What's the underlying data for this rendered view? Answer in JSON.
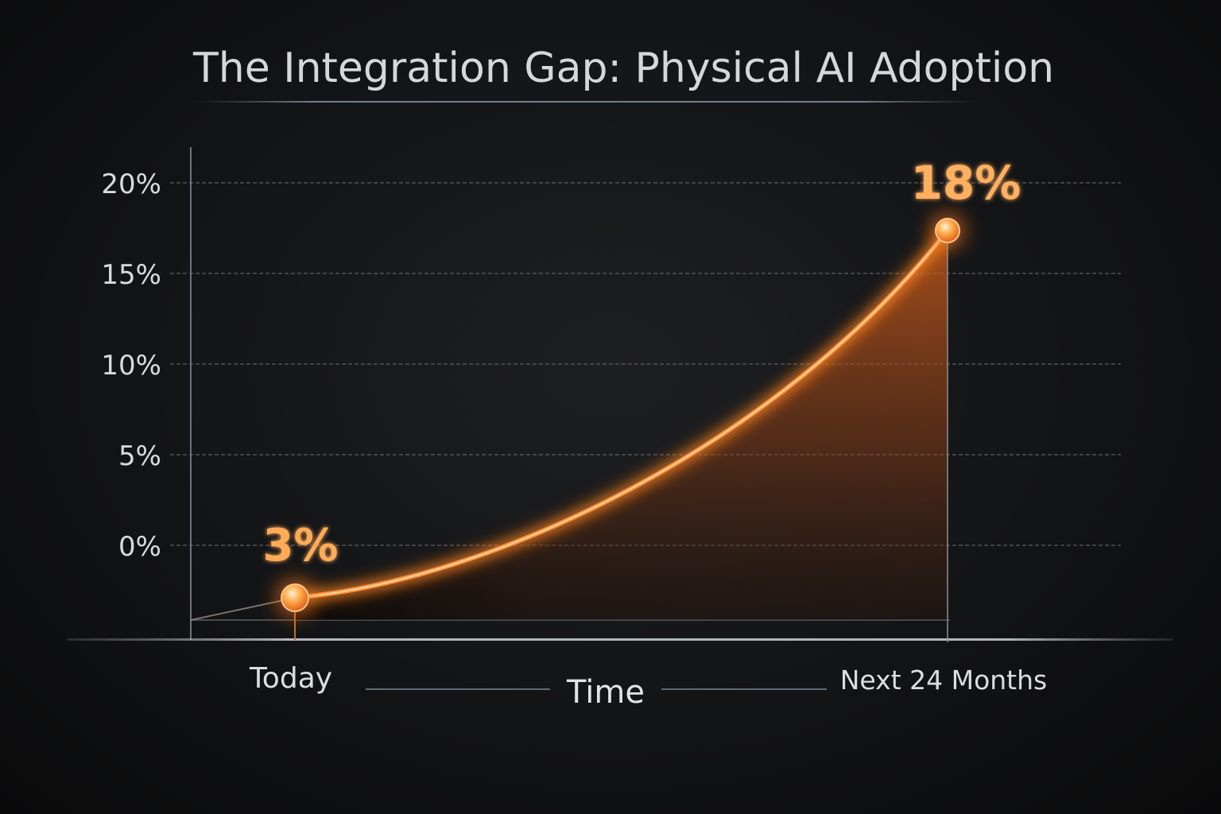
{
  "chart_data": {
    "type": "area",
    "title": "The Integration Gap: Physical AI Adoption",
    "xlabel": "Time",
    "ylabel": "",
    "x_ticks": [
      "Today",
      "Next 24 Months"
    ],
    "y_ticks": [
      "0%",
      "5%",
      "10%",
      "15%",
      "20%"
    ],
    "ylim": [
      0,
      20
    ],
    "grid": true,
    "series": [
      {
        "x": [
          "Today",
          "Next 24 Months"
        ],
        "values": [
          3,
          18
        ],
        "data_labels": [
          "3%",
          "18%"
        ]
      }
    ],
    "colors": {
      "line": "#ff8a2b",
      "fill": "#c9581a",
      "point": "#ff9a3c",
      "label": "#ffad5a",
      "grid": "#5a5d63",
      "axis": "#7c7f85",
      "text": "#d9dadc",
      "background": "#141517"
    }
  }
}
